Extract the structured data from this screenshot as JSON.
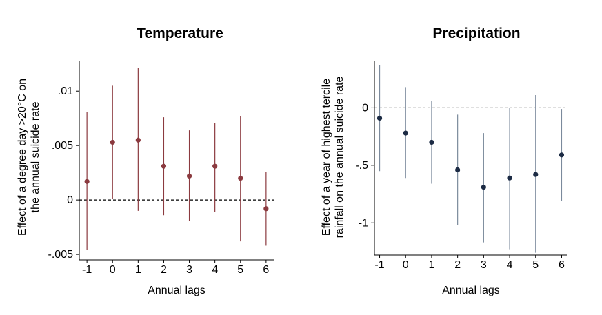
{
  "chart_data": [
    {
      "type": "scatter",
      "title": "Temperature",
      "xlabel": "Annual lags",
      "ylabel": [
        "Effect of a degree day >20°C on",
        "the annual suicide rate"
      ],
      "x": [
        -1,
        0,
        1,
        2,
        3,
        4,
        5,
        6
      ],
      "x_tick_labels": [
        "-1",
        "0",
        "1",
        "2",
        "3",
        "4",
        "5",
        "6"
      ],
      "y": [
        0.0017,
        0.0053,
        0.0055,
        0.0031,
        0.0022,
        0.0031,
        0.002,
        -0.0008
      ],
      "ci_low": [
        -0.0046,
        0.0001,
        -0.001,
        -0.0014,
        -0.0019,
        -0.0011,
        -0.0038,
        -0.0042
      ],
      "ci_high": [
        0.0081,
        0.0105,
        0.0121,
        0.0076,
        0.0064,
        0.0071,
        0.0077,
        0.0026
      ],
      "ylim": [
        -0.0055,
        0.0128
      ],
      "xlim": [
        -1.3,
        6.3
      ],
      "y_ticks": [
        -0.005,
        0,
        0.005,
        0.01
      ],
      "y_tick_labels": [
        "-.005",
        "0",
        ".005",
        ".01"
      ],
      "reference_line": 0,
      "color": "#8b3a3f",
      "grid": false
    },
    {
      "type": "scatter",
      "title": "Precipitation",
      "xlabel": "Annual lags",
      "ylabel": [
        "Effect of a year of highest tercile",
        "rainfall on the annual suicide rate"
      ],
      "x": [
        -1,
        0,
        1,
        2,
        3,
        4,
        5,
        6
      ],
      "x_tick_labels": [
        "-1",
        "0",
        "1",
        "2",
        "3",
        "4",
        "5",
        "6"
      ],
      "y": [
        -0.09,
        -0.22,
        -0.3,
        -0.54,
        -0.69,
        -0.61,
        -0.58,
        -0.41
      ],
      "ci_low": [
        -0.55,
        -0.61,
        -0.66,
        -1.02,
        -1.17,
        -1.23,
        -1.26,
        -0.81
      ],
      "ci_high": [
        0.37,
        0.18,
        0.06,
        -0.06,
        -0.22,
        0.0,
        0.11,
        -0.01
      ],
      "ylim": [
        -1.28,
        0.41
      ],
      "xlim": [
        -1.2,
        6.2
      ],
      "y_ticks": [
        -1,
        -0.5,
        0
      ],
      "y_tick_labels": [
        "-1",
        "-.5",
        "0"
      ],
      "reference_line": 0,
      "color": "#1c2b44",
      "ci_color": "#7b8a9c",
      "grid": false
    }
  ]
}
